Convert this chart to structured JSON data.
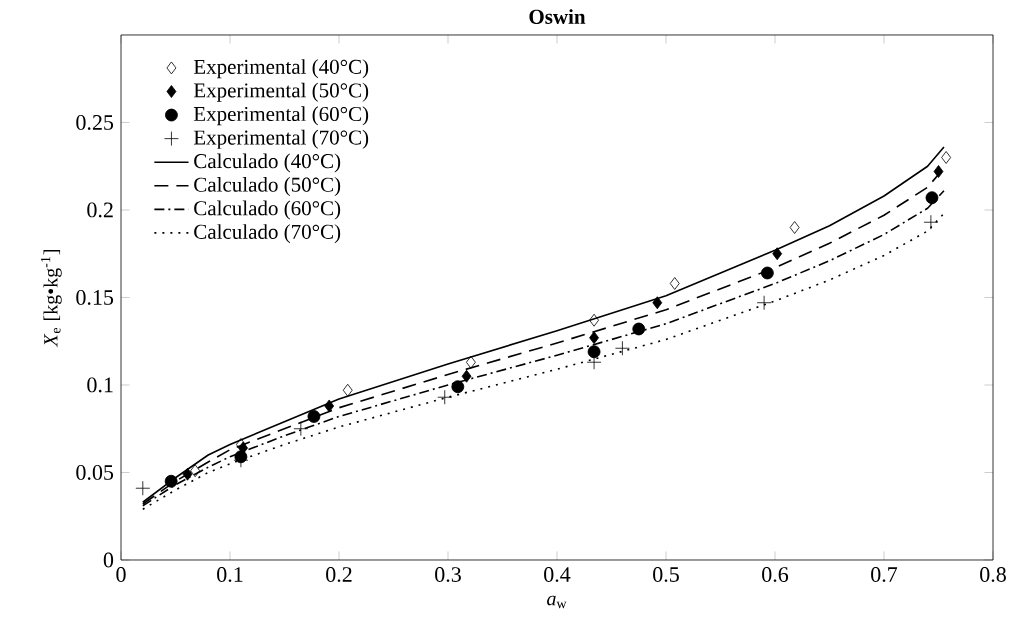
{
  "chart_data": {
    "type": "scatter",
    "title": "**Oswin**",
    "xlabel": "*a*$_{w}$",
    "ylabel": "*X*$_{e}$ [kg•kg$^{-1}$]",
    "xlim": [
      0,
      0.8
    ],
    "ylim": [
      0,
      0.3
    ],
    "xticks": [
      0,
      0.1,
      0.2,
      0.3,
      0.4,
      0.5,
      0.6,
      0.7,
      0.8
    ],
    "yticks": [
      0,
      0.05,
      0.1,
      0.15,
      0.2,
      0.25
    ],
    "grid": false,
    "legend": "top left",
    "series": [
      {
        "name": "Experimental (40°C)",
        "marker": "diamond",
        "color": "#000000",
        "x": [
          0.068,
          0.11,
          0.208,
          0.321,
          0.434,
          0.508,
          0.618,
          0.757
        ],
        "values": [
          0.051,
          0.066,
          0.097,
          0.113,
          0.137,
          0.158,
          0.19,
          0.23
        ]
      },
      {
        "name": "Experimental (50°C)",
        "marker": "diamond*",
        "color": "#000000",
        "x": [
          0.061,
          0.112,
          0.191,
          0.317,
          0.434,
          0.492,
          0.602,
          0.75
        ],
        "values": [
          0.049,
          0.064,
          0.088,
          0.105,
          0.127,
          0.147,
          0.175,
          0.222
        ]
      },
      {
        "name": "Experimental (60°C)",
        "marker": "circle",
        "color": "#000000",
        "x": [
          0.046,
          0.11,
          0.177,
          0.309,
          0.434,
          0.475,
          0.593,
          0.744
        ],
        "values": [
          0.045,
          0.059,
          0.082,
          0.099,
          0.119,
          0.132,
          0.164,
          0.207
        ]
      },
      {
        "name": "Experimental (70°C)",
        "marker": "cross",
        "color": "#000000",
        "x": [
          0.02,
          0.11,
          0.165,
          0.297,
          0.434,
          0.46,
          0.59,
          0.743
        ],
        "values": [
          0.041,
          0.057,
          0.075,
          0.093,
          0.113,
          0.121,
          0.147,
          0.193
        ]
      },
      {
        "name": "Calculado (40°C)",
        "type": "line",
        "line_style": "solid",
        "color": "#000000",
        "x": [
          0.02,
          0.05,
          0.08,
          0.1,
          0.15,
          0.2,
          0.3,
          0.4,
          0.5,
          0.6,
          0.65,
          0.7,
          0.74,
          0.755
        ],
        "values": [
          0.033,
          0.047,
          0.06,
          0.066,
          0.079,
          0.092,
          0.112,
          0.131,
          0.151,
          0.177,
          0.191,
          0.208,
          0.225,
          0.236
        ]
      },
      {
        "name": "Calculado (50°C)",
        "type": "line",
        "line_style": "dashed",
        "color": "#000000",
        "x": [
          0.02,
          0.05,
          0.08,
          0.1,
          0.15,
          0.2,
          0.3,
          0.4,
          0.5,
          0.6,
          0.65,
          0.7,
          0.74,
          0.755
        ],
        "values": [
          0.032,
          0.045,
          0.056,
          0.063,
          0.075,
          0.087,
          0.106,
          0.124,
          0.143,
          0.167,
          0.181,
          0.197,
          0.213,
          0.224
        ]
      },
      {
        "name": "Calculado (60°C)",
        "type": "line",
        "line_style": "dashdot",
        "color": "#000000",
        "x": [
          0.02,
          0.05,
          0.08,
          0.1,
          0.15,
          0.2,
          0.3,
          0.4,
          0.5,
          0.6,
          0.65,
          0.7,
          0.74,
          0.755
        ],
        "values": [
          0.031,
          0.043,
          0.053,
          0.059,
          0.071,
          0.082,
          0.1,
          0.117,
          0.135,
          0.158,
          0.171,
          0.186,
          0.201,
          0.211
        ]
      },
      {
        "name": "Calculado (70°C)",
        "type": "line",
        "line_style": "dotted",
        "color": "#000000",
        "x": [
          0.02,
          0.05,
          0.08,
          0.1,
          0.15,
          0.2,
          0.3,
          0.4,
          0.5,
          0.6,
          0.65,
          0.7,
          0.74,
          0.755
        ],
        "values": [
          0.029,
          0.04,
          0.05,
          0.055,
          0.066,
          0.076,
          0.093,
          0.109,
          0.126,
          0.148,
          0.16,
          0.174,
          0.188,
          0.198
        ]
      }
    ]
  }
}
